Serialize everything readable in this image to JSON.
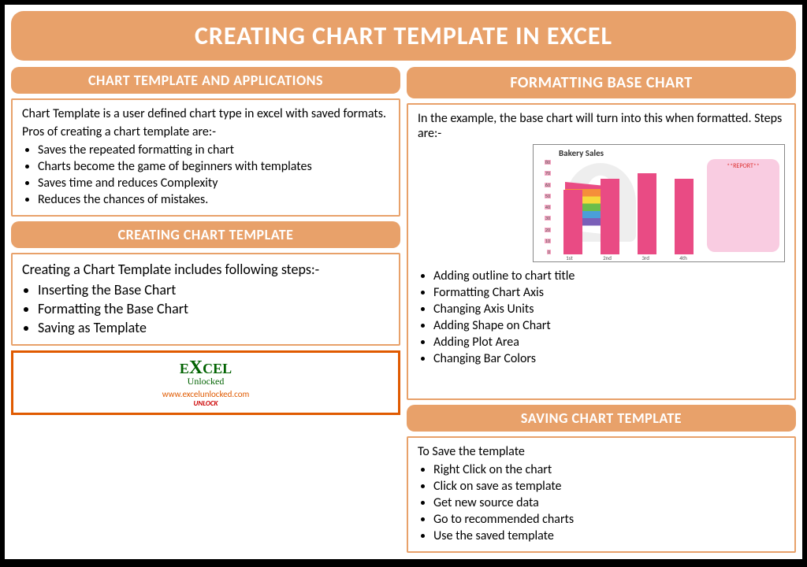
{
  "title": "CREATING CHART TEMPLATE IN EXCEL",
  "left": {
    "sec1": {
      "header": "CHART TEMPLATE AND APPLICATIONS",
      "intro1": "Chart Template is a user defined chart type in excel with saved formats.",
      "intro2": "Pros of creating a chart template are:-",
      "bullets": [
        "Saves the repeated formatting in chart",
        "Charts become the game of beginners with templates",
        "Saves time and reduces Complexity",
        "Reduces the chances of mistakes."
      ]
    },
    "sec2": {
      "header": "CREATING CHART TEMPLATE",
      "intro": "Creating a Chart Template includes following steps:-",
      "bullets": [
        "Inserting the Base Chart",
        "Formatting the Base Chart",
        "Saving as Template"
      ]
    },
    "logo": {
      "brand_pre": "E",
      "brand_x": "X",
      "brand_post": "CEL",
      "sub": "Unlocked",
      "url": "www.excelunlocked.com",
      "tag": "UNLOCK"
    }
  },
  "right": {
    "sec1": {
      "header": "FORMATTING BASE CHART",
      "intro": "In the example, the base chart will turn into this when formatted. Steps are:-",
      "bullets": [
        "Adding outline to chart title",
        "Formatting Chart Axis",
        "Changing Axis Units",
        "Adding Shape on Chart",
        "Adding Plot Area",
        "Changing Bar Colors"
      ]
    },
    "sec2": {
      "header": "SAVING CHART TEMPLATE",
      "intro": "To Save the template",
      "bullets": [
        "Right Click on the chart",
        "Click on save as template",
        "Get new source data",
        "Go to recommended charts",
        "Use the saved template"
      ]
    }
  },
  "chart": {
    "type": "bar",
    "title": "Bakery Sales",
    "report_label": "**REPORT**",
    "categories": [
      "1st",
      "2nd",
      "3rd",
      "4th"
    ],
    "values": [
      60,
      70,
      75,
      70
    ],
    "ymax": 80,
    "yticks": [
      "80",
      "70",
      "60",
      "50",
      "40",
      "30",
      "20",
      "10",
      "0"
    ],
    "bar_color": "#e94b84",
    "report_bg": "#f9cce1",
    "tick_bg": "#f7a6c4",
    "title_fontsize": 11,
    "label_fontsize": 7
  },
  "colors": {
    "header_bg": "#e8a16a",
    "box_border": "#e8a16a",
    "logo_border": "#e05a00",
    "logo_green": "#026302"
  }
}
